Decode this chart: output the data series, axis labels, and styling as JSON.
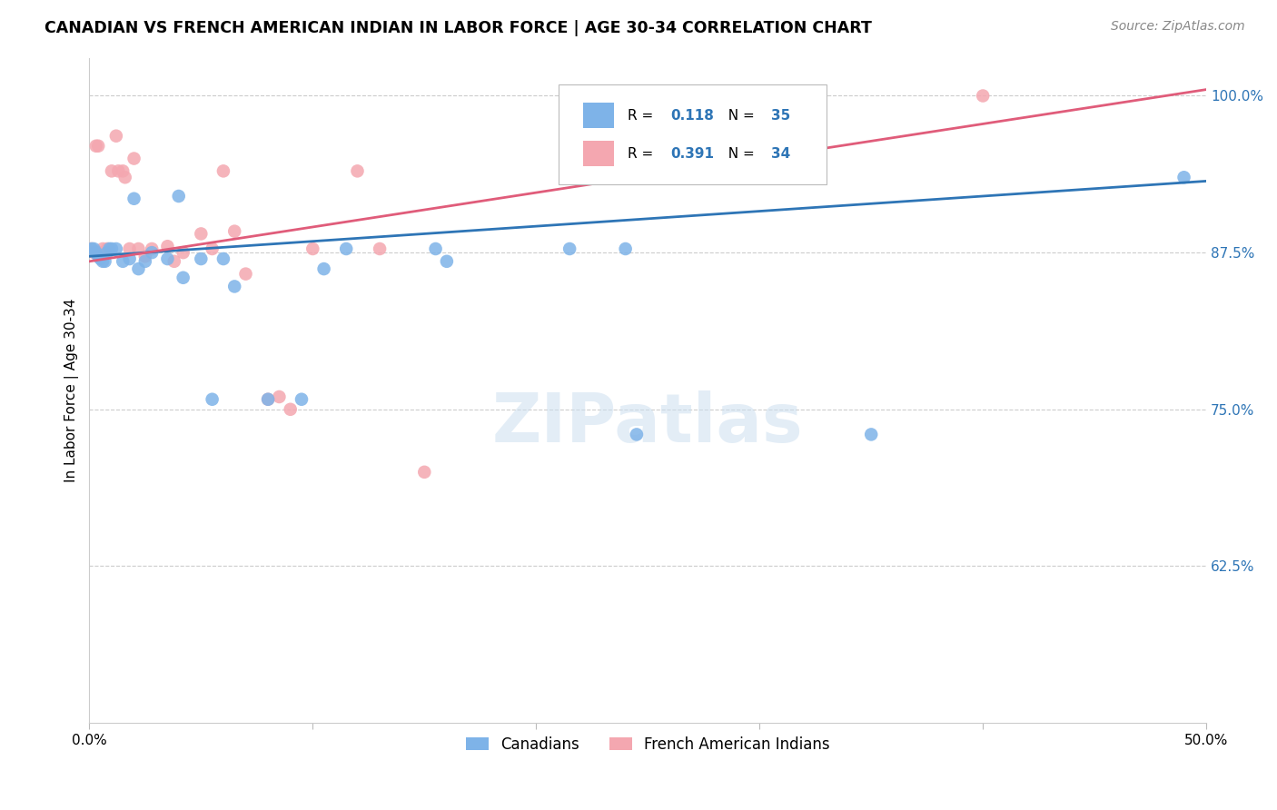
{
  "title": "CANADIAN VS FRENCH AMERICAN INDIAN IN LABOR FORCE | AGE 30-34 CORRELATION CHART",
  "source": "Source: ZipAtlas.com",
  "ylabel": "In Labor Force | Age 30-34",
  "xlim": [
    0.0,
    0.5
  ],
  "ylim": [
    0.5,
    1.03
  ],
  "yticks": [
    0.625,
    0.75,
    0.875,
    1.0
  ],
  "ytick_labels": [
    "62.5%",
    "75.0%",
    "87.5%",
    "100.0%"
  ],
  "xticks": [
    0.0,
    0.1,
    0.2,
    0.3,
    0.4,
    0.5
  ],
  "xtick_labels": [
    "0.0%",
    "",
    "",
    "",
    "",
    "50.0%"
  ],
  "canadian_color": "#7EB3E8",
  "french_color": "#F4A7B0",
  "trend_blue": "#2E75B6",
  "trend_pink": "#E05C7A",
  "legend_R_blue": "0.118",
  "legend_N_blue": "35",
  "legend_R_pink": "0.391",
  "legend_N_pink": "34",
  "canadians_x": [
    0.001,
    0.002,
    0.003,
    0.004,
    0.005,
    0.006,
    0.007,
    0.008,
    0.009,
    0.01,
    0.012,
    0.015,
    0.018,
    0.02,
    0.022,
    0.025,
    0.028,
    0.035,
    0.04,
    0.042,
    0.05,
    0.055,
    0.06,
    0.065,
    0.08,
    0.095,
    0.105,
    0.115,
    0.155,
    0.16,
    0.215,
    0.24,
    0.245,
    0.35,
    0.49
  ],
  "canadians_y": [
    0.878,
    0.878,
    0.875,
    0.872,
    0.87,
    0.868,
    0.868,
    0.875,
    0.878,
    0.878,
    0.878,
    0.868,
    0.87,
    0.918,
    0.862,
    0.868,
    0.875,
    0.87,
    0.92,
    0.855,
    0.87,
    0.758,
    0.87,
    0.848,
    0.758,
    0.758,
    0.862,
    0.878,
    0.878,
    0.868,
    0.878,
    0.878,
    0.73,
    0.73,
    0.935
  ],
  "french_x": [
    0.001,
    0.002,
    0.003,
    0.004,
    0.005,
    0.006,
    0.007,
    0.008,
    0.01,
    0.012,
    0.013,
    0.015,
    0.016,
    0.018,
    0.02,
    0.022,
    0.025,
    0.028,
    0.035,
    0.038,
    0.042,
    0.05,
    0.055,
    0.06,
    0.065,
    0.07,
    0.08,
    0.085,
    0.09,
    0.1,
    0.12,
    0.13,
    0.15,
    0.4
  ],
  "french_y": [
    0.878,
    0.875,
    0.96,
    0.96,
    0.875,
    0.878,
    0.875,
    0.878,
    0.94,
    0.968,
    0.94,
    0.94,
    0.935,
    0.878,
    0.95,
    0.878,
    0.872,
    0.878,
    0.88,
    0.868,
    0.875,
    0.89,
    0.878,
    0.94,
    0.892,
    0.858,
    0.758,
    0.76,
    0.75,
    0.878,
    0.94,
    0.878,
    0.7,
    1.0
  ],
  "trend_blue_x0": 0.0,
  "trend_blue_y0": 0.872,
  "trend_blue_x1": 0.5,
  "trend_blue_y1": 0.932,
  "trend_pink_x0": 0.0,
  "trend_pink_y0": 0.868,
  "trend_pink_x1": 0.5,
  "trend_pink_y1": 1.005
}
